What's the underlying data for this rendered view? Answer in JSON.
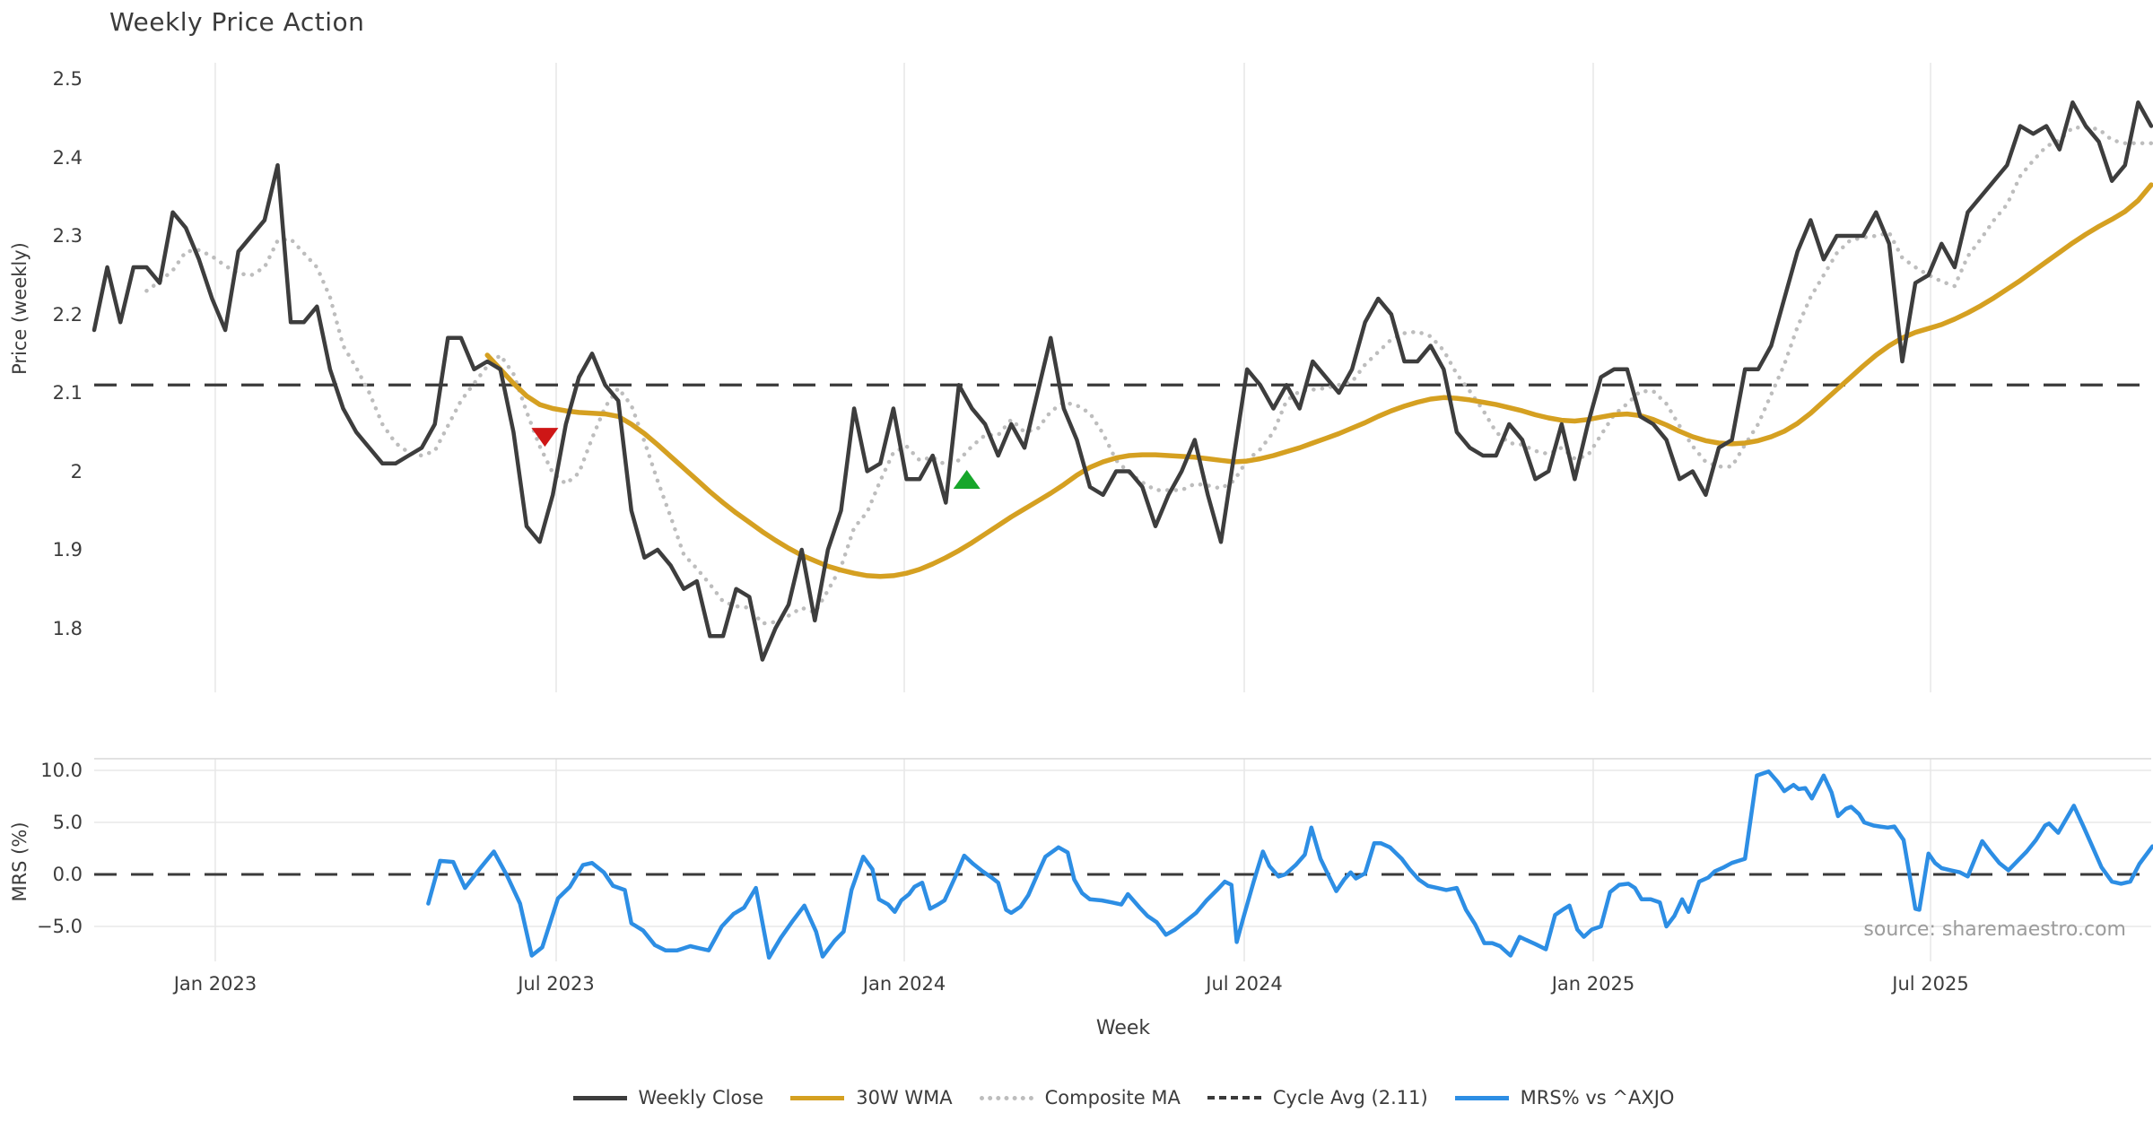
{
  "title": "Weekly Price Action",
  "source_note": "source: sharemaestro.com",
  "axes": {
    "price_panel": {
      "ylabel": "Price (weekly)",
      "yticks": [
        {
          "value": 2.5,
          "label": "2.5"
        },
        {
          "value": 2.4,
          "label": "2.4"
        },
        {
          "value": 2.3,
          "label": "2.3"
        },
        {
          "value": 2.2,
          "label": "2.2"
        },
        {
          "value": 2.1,
          "label": "2.1"
        },
        {
          "value": 2.0,
          "label": "2"
        },
        {
          "value": 1.9,
          "label": "1.9"
        },
        {
          "value": 1.8,
          "label": "1.8"
        }
      ]
    },
    "mrs_panel": {
      "ylabel": "MRS (%)",
      "yticks": [
        {
          "value": 10.0,
          "label": "10.0"
        },
        {
          "value": 5.0,
          "label": "5.0"
        },
        {
          "value": 0.0,
          "label": "0.0"
        },
        {
          "value": -5.0,
          "label": "−5.0"
        }
      ]
    },
    "x": {
      "label": "Week",
      "ticks": [
        {
          "week": 9.24,
          "label": "Jan 2023"
        },
        {
          "week": 35.26,
          "label": "Jul 2023"
        },
        {
          "week": 61.83,
          "label": "Jan 2024"
        },
        {
          "week": 87.78,
          "label": "Jul 2024"
        },
        {
          "week": 114.41,
          "label": "Jan 2025"
        },
        {
          "week": 140.16,
          "label": "Jul 2025"
        }
      ]
    }
  },
  "legend": [
    {
      "label": "Weekly Close",
      "style": "solid",
      "color": "#3d3d3d"
    },
    {
      "label": "30W WMA",
      "style": "solid",
      "color": "#d5a021"
    },
    {
      "label": "Composite MA",
      "style": "dotted",
      "color": "#bdbdbd"
    },
    {
      "label": "Cycle Avg (2.11)",
      "style": "dashed",
      "color": "#3a3a3a"
    },
    {
      "label": "MRS% vs ^AXJO",
      "style": "solid",
      "color": "#2d8ee4"
    }
  ],
  "colors": {
    "close": "#3d3d3d",
    "wma": "#d5a021",
    "composite": "#bdbdbd",
    "cycle": "#3a3a3a",
    "mrs": "#2d8ee4",
    "sell_marker": "#ce1616",
    "buy_marker": "#17a62b",
    "grid": "#e8e8e8",
    "spine": "#d9d9d9",
    "text": "#3c3c3c",
    "source": "#9c9c9c"
  },
  "chart_data": {
    "type": "line",
    "title": "Weekly Price Action",
    "xlabel": "Week",
    "x_unit": "weeks from first sample (first week ≈ Nov 2022, weekly cadence to Oct 2025)",
    "price_ylim": [
      1.72,
      2.52
    ],
    "mrs_ylim": [
      -10.5,
      11.0
    ],
    "cycle_avg": 2.11,
    "weekly_close": [
      2.18,
      2.26,
      2.19,
      2.26,
      2.26,
      2.24,
      2.33,
      2.31,
      2.27,
      2.22,
      2.18,
      2.28,
      2.3,
      2.32,
      2.39,
      2.19,
      2.19,
      2.21,
      2.13,
      2.08,
      2.05,
      2.03,
      2.01,
      2.01,
      2.02,
      2.03,
      2.06,
      2.17,
      2.17,
      2.13,
      2.14,
      2.13,
      2.05,
      1.93,
      1.91,
      1.97,
      2.06,
      2.12,
      2.15,
      2.11,
      2.09,
      1.95,
      1.89,
      1.9,
      1.88,
      1.85,
      1.86,
      1.79,
      1.79,
      1.85,
      1.84,
      1.76,
      1.8,
      1.83,
      1.9,
      1.81,
      1.9,
      1.95,
      2.08,
      2.0,
      2.01,
      2.08,
      1.99,
      1.99,
      2.02,
      1.96,
      2.11,
      2.08,
      2.06,
      2.02,
      2.06,
      2.03,
      2.1,
      2.17,
      2.08,
      2.04,
      1.98,
      1.97,
      2.0,
      2.0,
      1.98,
      1.93,
      1.97,
      2.0,
      2.04,
      1.97,
      1.91,
      2.02,
      2.13,
      2.11,
      2.08,
      2.11,
      2.08,
      2.14,
      2.12,
      2.1,
      2.13,
      2.19,
      2.22,
      2.2,
      2.14,
      2.14,
      2.16,
      2.13,
      2.05,
      2.03,
      2.02,
      2.02,
      2.06,
      2.04,
      1.99,
      2.0,
      2.06,
      1.99,
      2.06,
      2.12,
      2.13,
      2.13,
      2.07,
      2.06,
      2.04,
      1.99,
      2.0,
      1.97,
      2.03,
      2.04,
      2.13,
      2.13,
      2.16,
      2.22,
      2.28,
      2.32,
      2.27,
      2.3,
      2.3,
      2.3,
      2.33,
      2.29,
      2.14,
      2.24,
      2.25,
      2.29,
      2.26,
      2.33,
      2.35,
      2.37,
      2.39,
      2.44,
      2.43,
      2.44,
      2.41,
      2.47,
      2.44,
      2.42,
      2.37,
      2.39,
      2.47,
      2.44
    ],
    "wma_30w": {
      "start_week": 30,
      "values": [
        2.148,
        2.13,
        2.112,
        2.096,
        2.085,
        2.08,
        2.077,
        2.075,
        2.074,
        2.073,
        2.07,
        2.06,
        2.048,
        2.034,
        2.019,
        2.004,
        1.989,
        1.974,
        1.96,
        1.947,
        1.935,
        1.923,
        1.912,
        1.902,
        1.893,
        1.886,
        1.879,
        1.874,
        1.87,
        1.867,
        1.866,
        1.867,
        1.87,
        1.875,
        1.882,
        1.89,
        1.899,
        1.909,
        1.92,
        1.931,
        1.942,
        1.952,
        1.962,
        1.972,
        1.983,
        1.995,
        2.005,
        2.012,
        2.017,
        2.02,
        2.021,
        2.021,
        2.02,
        2.019,
        2.018,
        2.016,
        2.014,
        2.012,
        2.013,
        2.016,
        2.02,
        2.025,
        2.03,
        2.036,
        2.042,
        2.048,
        2.055,
        2.062,
        2.07,
        2.077,
        2.083,
        2.088,
        2.092,
        2.094,
        2.093,
        2.091,
        2.088,
        2.085,
        2.081,
        2.077,
        2.072,
        2.068,
        2.065,
        2.064,
        2.066,
        2.069,
        2.072,
        2.073,
        2.071,
        2.066,
        2.059,
        2.051,
        2.044,
        2.039,
        2.036,
        2.035,
        2.036,
        2.039,
        2.044,
        2.051,
        2.061,
        2.074,
        2.089,
        2.104,
        2.119,
        2.134,
        2.148,
        2.16,
        2.17,
        2.177,
        2.182,
        2.187,
        2.194,
        2.202,
        2.211,
        2.221,
        2.232,
        2.243,
        2.255,
        2.267,
        2.279,
        2.291,
        2.302,
        2.312,
        2.321,
        2.331,
        2.345,
        2.365
      ]
    },
    "composite_ma_rule": "5-week trailing mean of weekly_close, plotted from week 4",
    "mrs_vs_axjo": [
      [
        25.5,
        -2.8
      ],
      [
        26.4,
        1.3
      ],
      [
        27.4,
        1.2
      ],
      [
        28.3,
        -1.3
      ],
      [
        29.4,
        0.5
      ],
      [
        30.5,
        2.2
      ],
      [
        31.5,
        -0.1
      ],
      [
        32.5,
        -2.8
      ],
      [
        33.4,
        -7.8
      ],
      [
        34.2,
        -7.0
      ],
      [
        35.4,
        -2.3
      ],
      [
        36.3,
        -1.2
      ],
      [
        37.3,
        0.9
      ],
      [
        38.0,
        1.1
      ],
      [
        38.9,
        0.2
      ],
      [
        39.6,
        -1.1
      ],
      [
        40.5,
        -1.5
      ],
      [
        41.0,
        -4.7
      ],
      [
        41.9,
        -5.4
      ],
      [
        42.8,
        -6.8
      ],
      [
        43.6,
        -7.3
      ],
      [
        44.5,
        -7.3
      ],
      [
        45.5,
        -6.9
      ],
      [
        46.2,
        -7.1
      ],
      [
        46.9,
        -7.3
      ],
      [
        47.9,
        -5.0
      ],
      [
        48.8,
        -3.8
      ],
      [
        49.6,
        -3.2
      ],
      [
        50.5,
        -1.3
      ],
      [
        51.5,
        -8.0
      ],
      [
        52.4,
        -6.1
      ],
      [
        53.3,
        -4.5
      ],
      [
        54.2,
        -3.0
      ],
      [
        55.1,
        -5.5
      ],
      [
        55.6,
        -7.9
      ],
      [
        56.5,
        -6.4
      ],
      [
        57.2,
        -5.5
      ],
      [
        57.8,
        -1.5
      ],
      [
        58.7,
        1.7
      ],
      [
        59.4,
        0.5
      ],
      [
        59.9,
        -2.4
      ],
      [
        60.6,
        -2.9
      ],
      [
        61.1,
        -3.6
      ],
      [
        61.6,
        -2.5
      ],
      [
        62.2,
        -1.9
      ],
      [
        62.6,
        -1.2
      ],
      [
        63.2,
        -0.8
      ],
      [
        63.8,
        -3.3
      ],
      [
        64.4,
        -2.9
      ],
      [
        64.9,
        -2.5
      ],
      [
        65.7,
        -0.3
      ],
      [
        66.4,
        1.8
      ],
      [
        67.1,
        1.0
      ],
      [
        67.8,
        0.3
      ],
      [
        68.5,
        -0.3
      ],
      [
        69.0,
        -0.8
      ],
      [
        69.6,
        -3.4
      ],
      [
        70.0,
        -3.7
      ],
      [
        70.7,
        -3.1
      ],
      [
        71.3,
        -2.0
      ],
      [
        72.1,
        0.3
      ],
      [
        72.6,
        1.7
      ],
      [
        73.6,
        2.6
      ],
      [
        74.3,
        2.1
      ],
      [
        74.8,
        -0.5
      ],
      [
        75.4,
        -1.8
      ],
      [
        76.0,
        -2.4
      ],
      [
        76.9,
        -2.5
      ],
      [
        77.7,
        -2.7
      ],
      [
        78.4,
        -2.9
      ],
      [
        78.9,
        -1.9
      ],
      [
        79.8,
        -3.2
      ],
      [
        80.4,
        -4.0
      ],
      [
        81.1,
        -4.6
      ],
      [
        81.8,
        -5.8
      ],
      [
        82.5,
        -5.3
      ],
      [
        83.3,
        -4.5
      ],
      [
        84.1,
        -3.7
      ],
      [
        84.9,
        -2.5
      ],
      [
        85.7,
        -1.5
      ],
      [
        86.3,
        -0.7
      ],
      [
        86.8,
        -1.0
      ],
      [
        87.2,
        -6.5
      ],
      [
        87.7,
        -4.2
      ],
      [
        88.5,
        -0.7
      ],
      [
        89.2,
        2.2
      ],
      [
        89.7,
        0.8
      ],
      [
        90.4,
        -0.2
      ],
      [
        90.9,
        0.0
      ],
      [
        91.7,
        0.9
      ],
      [
        92.4,
        1.9
      ],
      [
        92.9,
        4.5
      ],
      [
        93.6,
        1.5
      ],
      [
        94.1,
        0.2
      ],
      [
        94.8,
        -1.6
      ],
      [
        95.4,
        -0.5
      ],
      [
        95.9,
        0.2
      ],
      [
        96.3,
        -0.4
      ],
      [
        97.0,
        0.1
      ],
      [
        97.7,
        3.0
      ],
      [
        98.2,
        3.0
      ],
      [
        98.9,
        2.6
      ],
      [
        99.8,
        1.5
      ],
      [
        100.4,
        0.5
      ],
      [
        101.1,
        -0.5
      ],
      [
        101.8,
        -1.1
      ],
      [
        102.5,
        -1.3
      ],
      [
        103.2,
        -1.5
      ],
      [
        104.0,
        -1.3
      ],
      [
        104.7,
        -3.4
      ],
      [
        105.4,
        -4.8
      ],
      [
        106.1,
        -6.6
      ],
      [
        106.7,
        -6.6
      ],
      [
        107.3,
        -6.9
      ],
      [
        108.1,
        -7.8
      ],
      [
        108.8,
        -6.0
      ],
      [
        109.3,
        -6.3
      ],
      [
        110.0,
        -6.7
      ],
      [
        110.8,
        -7.2
      ],
      [
        111.5,
        -3.9
      ],
      [
        112.2,
        -3.3
      ],
      [
        112.6,
        -3.0
      ],
      [
        113.2,
        -5.3
      ],
      [
        113.7,
        -6.0
      ],
      [
        114.3,
        -5.3
      ],
      [
        115.0,
        -5.0
      ],
      [
        115.7,
        -1.7
      ],
      [
        116.4,
        -1.0
      ],
      [
        117.1,
        -0.9
      ],
      [
        117.6,
        -1.3
      ],
      [
        118.1,
        -2.4
      ],
      [
        118.8,
        -2.4
      ],
      [
        119.5,
        -2.7
      ],
      [
        120.0,
        -5.0
      ],
      [
        120.6,
        -4.0
      ],
      [
        121.2,
        -2.4
      ],
      [
        121.7,
        -3.6
      ],
      [
        122.5,
        -0.7
      ],
      [
        123.2,
        -0.3
      ],
      [
        123.7,
        0.3
      ],
      [
        124.4,
        0.7
      ],
      [
        125.0,
        1.1
      ],
      [
        125.5,
        1.3
      ],
      [
        126.0,
        1.5
      ],
      [
        126.9,
        9.5
      ],
      [
        127.8,
        9.9
      ],
      [
        128.5,
        8.9
      ],
      [
        129.0,
        8.0
      ],
      [
        129.7,
        8.6
      ],
      [
        130.1,
        8.2
      ],
      [
        130.6,
        8.3
      ],
      [
        131.1,
        7.3
      ],
      [
        132.0,
        9.5
      ],
      [
        132.6,
        7.9
      ],
      [
        133.1,
        5.6
      ],
      [
        133.7,
        6.3
      ],
      [
        134.1,
        6.5
      ],
      [
        134.7,
        5.8
      ],
      [
        135.1,
        5.0
      ],
      [
        135.8,
        4.7
      ],
      [
        136.3,
        4.6
      ],
      [
        136.9,
        4.5
      ],
      [
        137.4,
        4.6
      ],
      [
        138.1,
        3.3
      ],
      [
        139.0,
        -3.3
      ],
      [
        139.3,
        -3.4
      ],
      [
        140.0,
        2.0
      ],
      [
        140.5,
        1.1
      ],
      [
        141.0,
        0.6
      ],
      [
        141.7,
        0.4
      ],
      [
        142.4,
        0.2
      ],
      [
        143.0,
        -0.2
      ],
      [
        144.1,
        3.2
      ],
      [
        144.7,
        2.2
      ],
      [
        145.4,
        1.1
      ],
      [
        146.1,
        0.4
      ],
      [
        146.8,
        1.3
      ],
      [
        147.5,
        2.2
      ],
      [
        148.2,
        3.3
      ],
      [
        148.9,
        4.7
      ],
      [
        149.2,
        4.9
      ],
      [
        149.9,
        4.0
      ],
      [
        151.1,
        6.6
      ],
      [
        151.8,
        4.7
      ],
      [
        152.5,
        2.7
      ],
      [
        153.2,
        0.7
      ],
      [
        154.0,
        -0.7
      ],
      [
        154.7,
        -0.9
      ],
      [
        155.4,
        -0.7
      ],
      [
        156.1,
        1.0
      ],
      [
        156.8,
        2.2
      ],
      [
        157.1,
        2.7
      ]
    ],
    "markers": [
      {
        "type": "sell",
        "shape": "triangle-down",
        "week": 34.4,
        "price": 2.045
      },
      {
        "type": "buy",
        "shape": "triangle-up",
        "week": 66.6,
        "price": 1.988
      }
    ],
    "legend_position": "bottom-center",
    "grid": {
      "price_panel": "vertical month gridlines",
      "mrs_panel": "vertical + horizontal gridlines"
    }
  }
}
